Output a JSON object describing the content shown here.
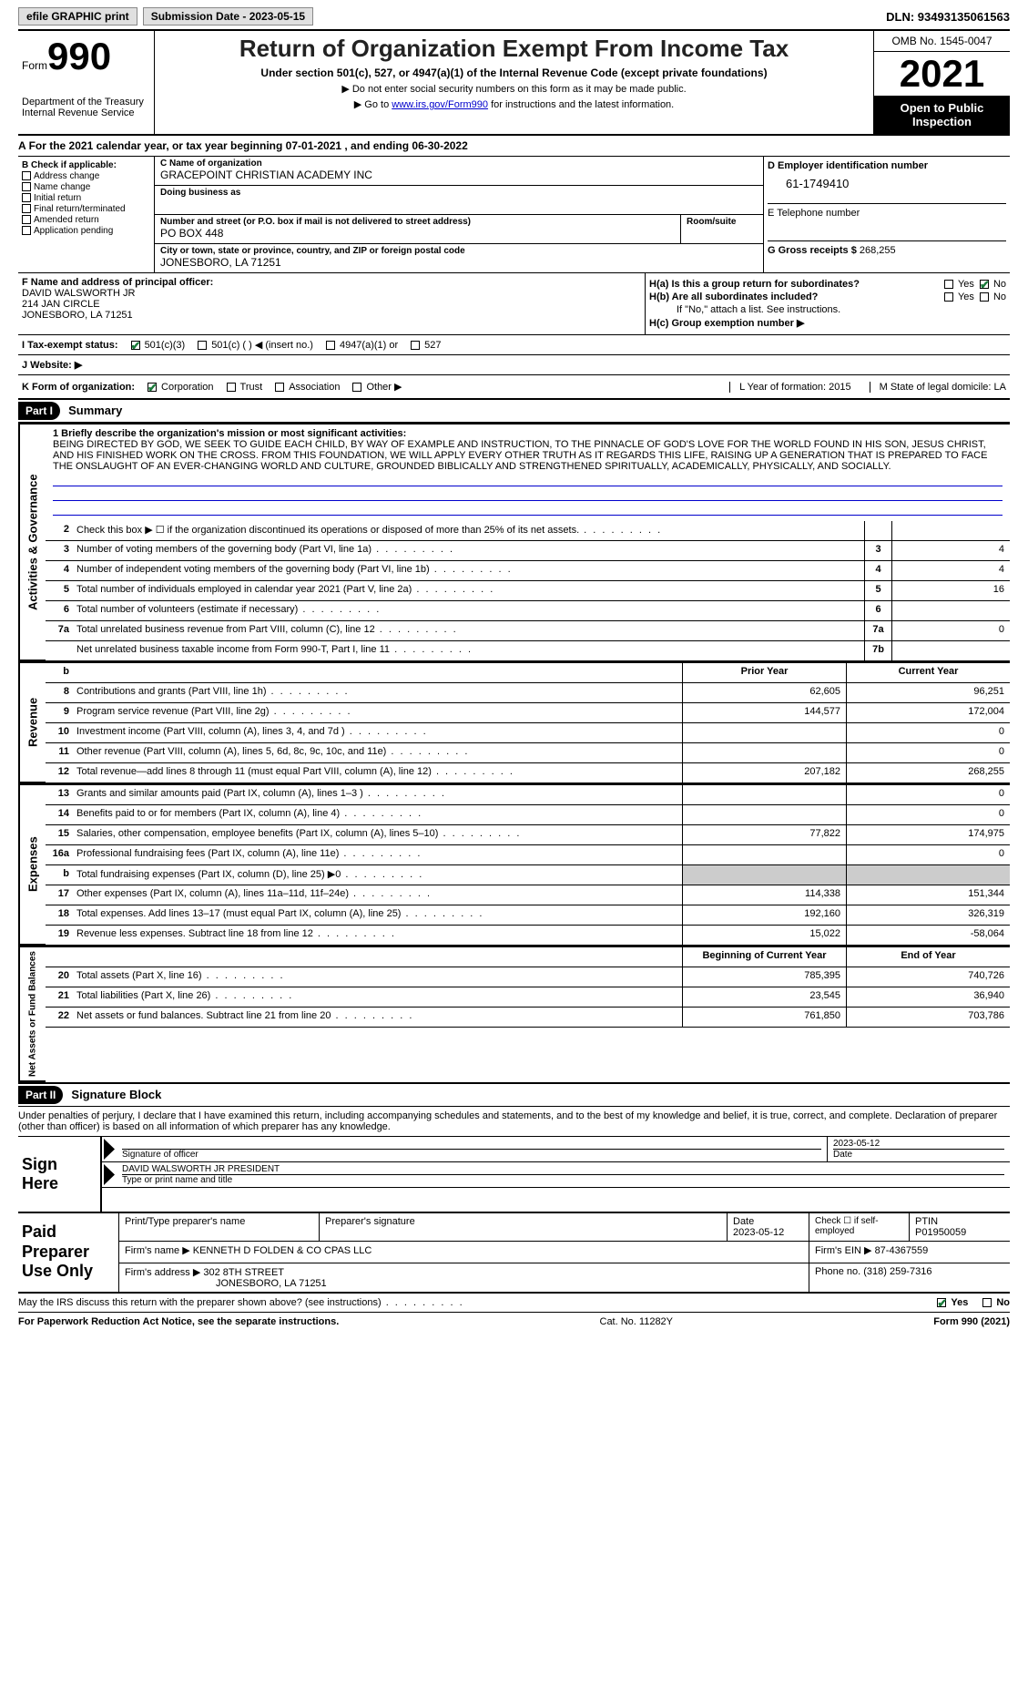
{
  "topbar": {
    "efile": "efile GRAPHIC print",
    "submission": "Submission Date - 2023-05-15",
    "dln": "DLN: 93493135061563"
  },
  "header": {
    "form_label": "Form",
    "form_num": "990",
    "dept": "Department of the Treasury\nInternal Revenue Service",
    "title": "Return of Organization Exempt From Income Tax",
    "subtitle": "Under section 501(c), 527, or 4947(a)(1) of the Internal Revenue Code (except private foundations)",
    "note1": "▶ Do not enter social security numbers on this form as it may be made public.",
    "note2_pre": "▶ Go to ",
    "note2_link": "www.irs.gov/Form990",
    "note2_post": " for instructions and the latest information.",
    "omb": "OMB No. 1545-0047",
    "year": "2021",
    "open": "Open to Public Inspection"
  },
  "period": {
    "line": "For the 2021 calendar year, or tax year beginning 07-01-2021    , and ending 06-30-2022"
  },
  "boxB": {
    "label": "B Check if applicable:",
    "items": [
      "Address change",
      "Name change",
      "Initial return",
      "Final return/terminated",
      "Amended return",
      "Application pending"
    ]
  },
  "boxC": {
    "name_label": "C Name of organization",
    "name": "GRACEPOINT CHRISTIAN ACADEMY INC",
    "dba_label": "Doing business as",
    "addr_label": "Number and street (or P.O. box if mail is not delivered to street address)",
    "room_label": "Room/suite",
    "addr": "PO BOX 448",
    "city_label": "City or town, state or province, country, and ZIP or foreign postal code",
    "city": "JONESBORO, LA  71251"
  },
  "boxD": {
    "label": "D Employer identification number",
    "value": "61-1749410"
  },
  "boxE": {
    "label": "E Telephone number",
    "value": ""
  },
  "boxG": {
    "label": "G Gross receipts $",
    "value": "268,255"
  },
  "boxF": {
    "label": "F  Name and address of principal officer:",
    "name": "DAVID WALSWORTH JR",
    "addr1": "214 JAN CIRCLE",
    "addr2": "JONESBORO, LA  71251"
  },
  "boxH": {
    "ha": "H(a)  Is this a group return for subordinates?",
    "hb": "H(b)  Are all subordinates included?",
    "hb_note": "If \"No,\" attach a list. See instructions.",
    "hc": "H(c)  Group exemption number ▶",
    "yes": "Yes",
    "no": "No"
  },
  "rowI": {
    "label": "I  Tax-exempt status:",
    "opts": [
      "501(c)(3)",
      "501(c) (  ) ◀ (insert no.)",
      "4947(a)(1) or",
      "527"
    ]
  },
  "rowJ": {
    "label": "J  Website: ▶"
  },
  "rowK": {
    "label": "K Form of organization:",
    "opts": [
      "Corporation",
      "Trust",
      "Association",
      "Other ▶"
    ],
    "L": "L Year of formation: 2015",
    "M": "M State of legal domicile: LA"
  },
  "partI": {
    "tag": "Part I",
    "title": "Summary"
  },
  "mission": {
    "label": "1  Briefly describe the organization's mission or most significant activities:",
    "text": "BEING DIRECTED BY GOD, WE SEEK TO GUIDE EACH CHILD, BY WAY OF EXAMPLE AND INSTRUCTION, TO THE PINNACLE OF GOD'S LOVE FOR THE WORLD FOUND IN HIS SON, JESUS CHRIST, AND HIS FINISHED WORK ON THE CROSS. FROM THIS FOUNDATION, WE WILL APPLY EVERY OTHER TRUTH AS IT REGARDS THIS LIFE, RAISING UP A GENERATION THAT IS PREPARED TO FACE THE ONSLAUGHT OF AN EVER-CHANGING WORLD AND CULTURE, GROUNDED BIBLICALLY AND STRENGTHENED SPIRITUALLY, ACADEMICALLY, PHYSICALLY, AND SOCIALLY."
  },
  "gov_lines": [
    {
      "n": "2",
      "d": "Check this box ▶ ☐  if the organization discontinued its operations or disposed of more than 25% of its net assets.",
      "box": "",
      "v": ""
    },
    {
      "n": "3",
      "d": "Number of voting members of the governing body (Part VI, line 1a)",
      "box": "3",
      "v": "4"
    },
    {
      "n": "4",
      "d": "Number of independent voting members of the governing body (Part VI, line 1b)",
      "box": "4",
      "v": "4"
    },
    {
      "n": "5",
      "d": "Total number of individuals employed in calendar year 2021 (Part V, line 2a)",
      "box": "5",
      "v": "16"
    },
    {
      "n": "6",
      "d": "Total number of volunteers (estimate if necessary)",
      "box": "6",
      "v": ""
    },
    {
      "n": "7a",
      "d": "Total unrelated business revenue from Part VIII, column (C), line 12",
      "box": "7a",
      "v": "0"
    },
    {
      "n": "",
      "d": "Net unrelated business taxable income from Form 990-T, Part I, line 11",
      "box": "7b",
      "v": ""
    }
  ],
  "rev_hdr": {
    "py": "Prior Year",
    "cy": "Current Year",
    "b": "b"
  },
  "rev_lines": [
    {
      "n": "8",
      "d": "Contributions and grants (Part VIII, line 1h)",
      "py": "62,605",
      "cy": "96,251"
    },
    {
      "n": "9",
      "d": "Program service revenue (Part VIII, line 2g)",
      "py": "144,577",
      "cy": "172,004"
    },
    {
      "n": "10",
      "d": "Investment income (Part VIII, column (A), lines 3, 4, and 7d )",
      "py": "",
      "cy": "0"
    },
    {
      "n": "11",
      "d": "Other revenue (Part VIII, column (A), lines 5, 6d, 8c, 9c, 10c, and 11e)",
      "py": "",
      "cy": "0"
    },
    {
      "n": "12",
      "d": "Total revenue—add lines 8 through 11 (must equal Part VIII, column (A), line 12)",
      "py": "207,182",
      "cy": "268,255"
    }
  ],
  "exp_lines": [
    {
      "n": "13",
      "d": "Grants and similar amounts paid (Part IX, column (A), lines 1–3 )",
      "py": "",
      "cy": "0"
    },
    {
      "n": "14",
      "d": "Benefits paid to or for members (Part IX, column (A), line 4)",
      "py": "",
      "cy": "0"
    },
    {
      "n": "15",
      "d": "Salaries, other compensation, employee benefits (Part IX, column (A), lines 5–10)",
      "py": "77,822",
      "cy": "174,975"
    },
    {
      "n": "16a",
      "d": "Professional fundraising fees (Part IX, column (A), line 11e)",
      "py": "",
      "cy": "0"
    },
    {
      "n": "b",
      "d": "Total fundraising expenses (Part IX, column (D), line 25) ▶0",
      "py": "SHADE",
      "cy": "SHADE"
    },
    {
      "n": "17",
      "d": "Other expenses (Part IX, column (A), lines 11a–11d, 11f–24e)",
      "py": "114,338",
      "cy": "151,344"
    },
    {
      "n": "18",
      "d": "Total expenses. Add lines 13–17 (must equal Part IX, column (A), line 25)",
      "py": "192,160",
      "cy": "326,319"
    },
    {
      "n": "19",
      "d": "Revenue less expenses. Subtract line 18 from line 12",
      "py": "15,022",
      "cy": "-58,064"
    }
  ],
  "na_hdr": {
    "py": "Beginning of Current Year",
    "cy": "End of Year"
  },
  "na_lines": [
    {
      "n": "20",
      "d": "Total assets (Part X, line 16)",
      "py": "785,395",
      "cy": "740,726"
    },
    {
      "n": "21",
      "d": "Total liabilities (Part X, line 26)",
      "py": "23,545",
      "cy": "36,940"
    },
    {
      "n": "22",
      "d": "Net assets or fund balances. Subtract line 21 from line 20",
      "py": "761,850",
      "cy": "703,786"
    }
  ],
  "side_labels": {
    "gov": "Activities & Governance",
    "rev": "Revenue",
    "exp": "Expenses",
    "na": "Net Assets or Fund Balances"
  },
  "partII": {
    "tag": "Part II",
    "title": "Signature Block"
  },
  "sig": {
    "intro": "Under penalties of perjury, I declare that I have examined this return, including accompanying schedules and statements, and to the best of my knowledge and belief, it is true, correct, and complete. Declaration of preparer (other than officer) is based on all information of which preparer has any knowledge.",
    "sign_here": "Sign Here",
    "sig_officer": "Signature of officer",
    "date": "Date",
    "date_val": "2023-05-12",
    "name": "DAVID WALSWORTH JR  PRESIDENT",
    "name_label": "Type or print name and title"
  },
  "paid": {
    "title": "Paid Preparer Use Only",
    "h1": "Print/Type preparer's name",
    "h2": "Preparer's signature",
    "h3": "Date",
    "h3v": "2023-05-12",
    "h4": "Check ☐ if self-employed",
    "h5": "PTIN",
    "h5v": "P01950059",
    "firm_label": "Firm's name    ▶",
    "firm": "KENNETH D FOLDEN & CO CPAS LLC",
    "ein_label": "Firm's EIN ▶",
    "ein": "87-4367559",
    "addr_label": "Firm's address ▶",
    "addr": "302 8TH STREET",
    "addr2": "JONESBORO, LA  71251",
    "phone_label": "Phone no.",
    "phone": "(318) 259-7316"
  },
  "footer": {
    "q": "May the IRS discuss this return with the preparer shown above? (see instructions)",
    "yes": "Yes",
    "no": "No",
    "pra": "For Paperwork Reduction Act Notice, see the separate instructions.",
    "cat": "Cat. No. 11282Y",
    "form": "Form 990 (2021)"
  }
}
